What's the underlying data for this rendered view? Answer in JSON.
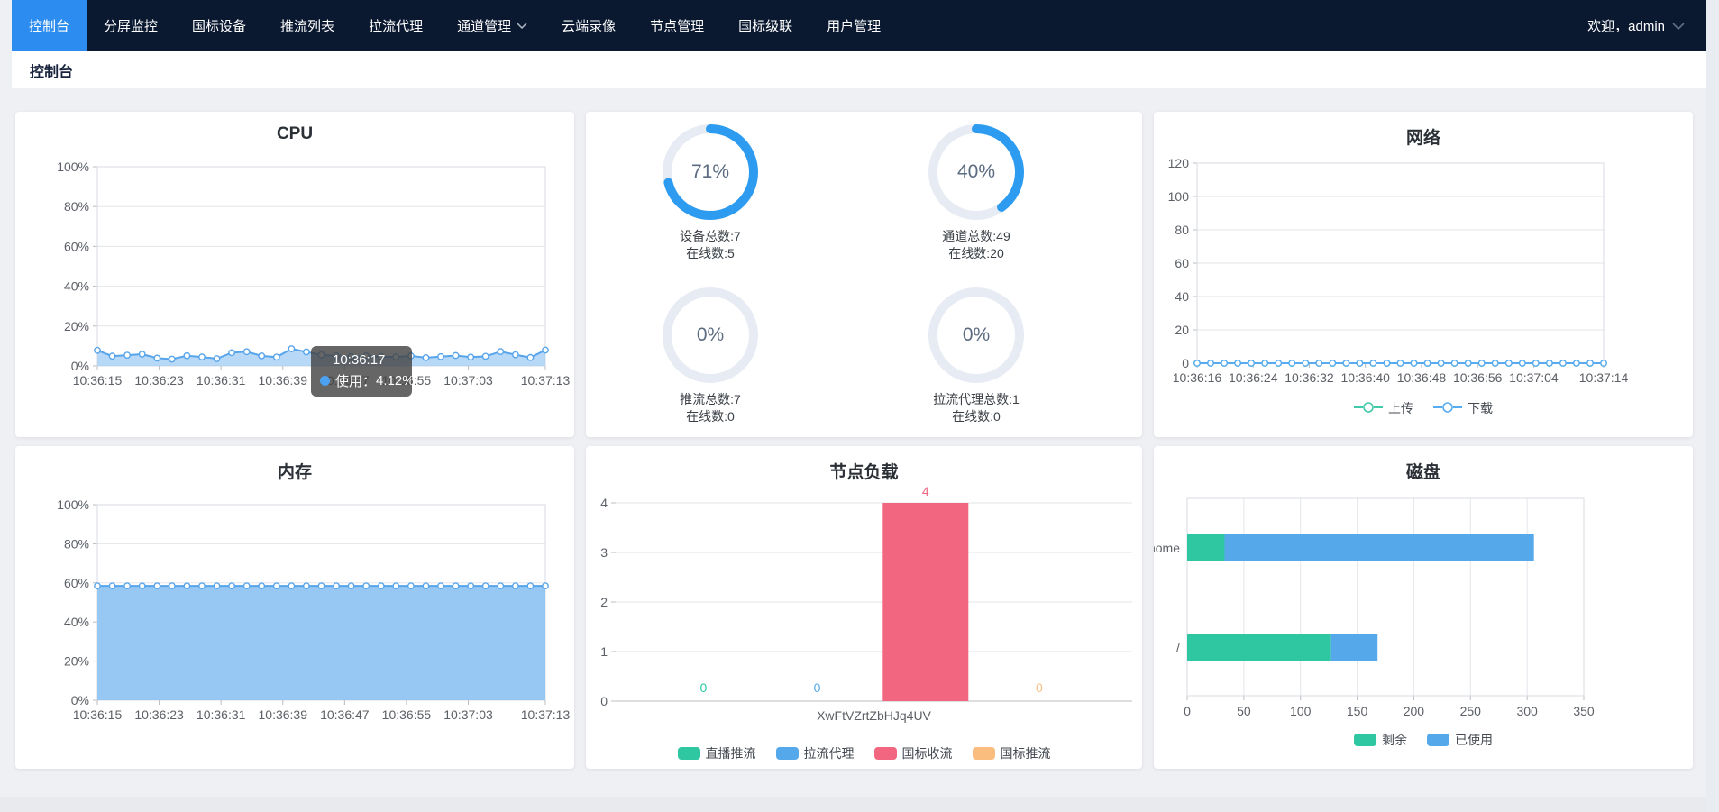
{
  "navbar": {
    "items": [
      {
        "label": "控制台",
        "active": true,
        "has_dropdown": false
      },
      {
        "label": "分屏监控",
        "active": false,
        "has_dropdown": false
      },
      {
        "label": "国标设备",
        "active": false,
        "has_dropdown": false
      },
      {
        "label": "推流列表",
        "active": false,
        "has_dropdown": false
      },
      {
        "label": "拉流代理",
        "active": false,
        "has_dropdown": false
      },
      {
        "label": "通道管理",
        "active": false,
        "has_dropdown": true
      },
      {
        "label": "云端录像",
        "active": false,
        "has_dropdown": false
      },
      {
        "label": "节点管理",
        "active": false,
        "has_dropdown": false
      },
      {
        "label": "国标级联",
        "active": false,
        "has_dropdown": false
      },
      {
        "label": "用户管理",
        "active": false,
        "has_dropdown": false
      }
    ],
    "welcome": "欢迎，admin"
  },
  "breadcrumb": {
    "title": "控制台"
  },
  "chart_data": [
    {
      "id": "cpu",
      "type": "area",
      "title": "CPU",
      "ylim": [
        0,
        100
      ],
      "yticks": [
        "0%",
        "20%",
        "40%",
        "60%",
        "80%",
        "100%"
      ],
      "x_labels": [
        "10:36:15",
        "10:36:23",
        "10:36:31",
        "10:36:39",
        "10:36:47",
        "10:36:55",
        "10:37:03",
        "10:37:13"
      ],
      "series": [
        {
          "name": "使用",
          "color": "#57a4ea",
          "values": [
            7.8,
            4.9,
            5.4,
            5.9,
            3.9,
            3.4,
            5.1,
            4.5,
            3.6,
            6.6,
            7.1,
            5.0,
            4.4,
            8.6,
            7.0,
            5.5,
            5.0,
            4.6,
            5.0,
            4.6,
            4.5,
            5.0,
            4.12,
            4.6,
            5.2,
            4.4,
            4.8,
            7.2,
            5.6,
            4.2,
            7.9
          ]
        }
      ],
      "tooltip": {
        "time": "10:36:17",
        "label": "使用：",
        "value": "4.12%"
      }
    },
    {
      "id": "gauges",
      "type": "gauge",
      "arc_color": "#2d9cf0",
      "track_color": "#e7ebf3",
      "items": [
        {
          "percent": "71%",
          "value": 71,
          "lines": [
            "设备总数:7",
            "在线数:5"
          ]
        },
        {
          "percent": "40%",
          "value": 40,
          "lines": [
            "通道总数:49",
            "在线数:20"
          ]
        },
        {
          "percent": "0%",
          "value": 0,
          "lines": [
            "推流总数:7",
            "在线数:0"
          ]
        },
        {
          "percent": "0%",
          "value": 0,
          "lines": [
            "拉流代理总数:1",
            "在线数:0"
          ]
        }
      ]
    },
    {
      "id": "network",
      "type": "line",
      "title": "网络",
      "ylim": [
        0,
        120
      ],
      "yticks": [
        "0",
        "20",
        "40",
        "60",
        "80",
        "100",
        "120"
      ],
      "x_labels": [
        "10:36:16",
        "10:36:24",
        "10:36:32",
        "10:36:40",
        "10:36:48",
        "10:36:56",
        "10:37:04",
        "10:37:14"
      ],
      "legend_position": "bottom",
      "series": [
        {
          "name": "上传",
          "color": "#3fc9a8",
          "values": [
            0,
            0,
            0,
            0,
            0,
            0,
            0,
            0,
            0,
            0,
            0,
            0,
            0,
            0,
            0,
            0,
            0,
            0,
            0,
            0,
            0,
            0,
            0,
            0,
            0,
            0,
            0,
            0,
            0,
            0,
            0
          ]
        },
        {
          "name": "下载",
          "color": "#58abf0",
          "values": [
            0,
            0,
            0,
            0,
            0,
            0,
            0,
            0,
            0,
            0,
            0,
            0,
            0,
            0,
            0,
            0,
            0,
            0,
            0,
            0,
            0,
            0,
            0,
            0,
            0,
            0,
            0,
            0,
            0,
            0,
            0
          ]
        }
      ]
    },
    {
      "id": "memory",
      "type": "area",
      "title": "内存",
      "ylim": [
        0,
        100
      ],
      "yticks": [
        "0%",
        "20%",
        "40%",
        "60%",
        "80%",
        "100%"
      ],
      "x_labels": [
        "10:36:15",
        "10:36:23",
        "10:36:31",
        "10:36:39",
        "10:36:47",
        "10:36:55",
        "10:37:03",
        "10:37:13"
      ],
      "series": [
        {
          "name": "内存",
          "color": "#57a4ea",
          "values": [
            58.5,
            58.5,
            58.5,
            58.5,
            58.5,
            58.5,
            58.5,
            58.5,
            58.5,
            58.5,
            58.5,
            58.5,
            58.5,
            58.5,
            58.5,
            58.5,
            58.5,
            58.5,
            58.5,
            58.5,
            58.5,
            58.5,
            58.5,
            58.5,
            58.5,
            58.5,
            58.5,
            58.5,
            58.5,
            58.5,
            58.5
          ]
        }
      ]
    },
    {
      "id": "node_load",
      "type": "bar",
      "title": "节点负载",
      "ylim": [
        0,
        4
      ],
      "yticks": [
        "0",
        "1",
        "2",
        "3",
        "4"
      ],
      "categories": [
        "XwFtVZrtZbHJq4UV"
      ],
      "legend_position": "bottom",
      "series": [
        {
          "name": "直播推流",
          "color": "#2ec7a2",
          "values": [
            0
          ]
        },
        {
          "name": "拉流代理",
          "color": "#55a9ea",
          "values": [
            0
          ]
        },
        {
          "name": "国标收流",
          "color": "#f2677f",
          "values": [
            4
          ]
        },
        {
          "name": "国标推流",
          "color": "#fbbd7e",
          "values": [
            0
          ]
        }
      ]
    },
    {
      "id": "disk",
      "type": "hbar",
      "title": "磁盘",
      "xlim": [
        0,
        350
      ],
      "xticks": [
        "0",
        "50",
        "100",
        "150",
        "200",
        "250",
        "300",
        "350"
      ],
      "categories": [
        "/home",
        "/"
      ],
      "legend_position": "bottom",
      "series": [
        {
          "name": "剩余",
          "color": "#2ec7a2",
          "values": [
            33,
            127
          ]
        },
        {
          "name": "已使用",
          "color": "#55a9ea",
          "values": [
            273,
            41
          ]
        }
      ]
    }
  ]
}
